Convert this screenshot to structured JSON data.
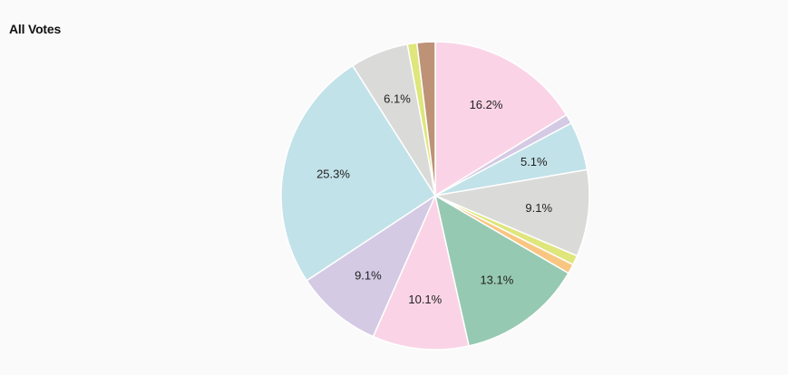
{
  "chart_data": {
    "type": "pie",
    "title": "All Votes",
    "slices": [
      {
        "value": 16.2,
        "color": "#fad4e6",
        "label": "16.2%"
      },
      {
        "value": 1.0,
        "color": "#d4cae4",
        "label": ""
      },
      {
        "value": 5.1,
        "color": "#c2e2e9",
        "label": "5.1%"
      },
      {
        "value": 9.1,
        "color": "#dadad8",
        "label": "9.1%"
      },
      {
        "value": 1.0,
        "color": "#dee67c",
        "label": ""
      },
      {
        "value": 1.0,
        "color": "#f9c682",
        "label": ""
      },
      {
        "value": 13.1,
        "color": "#96c9b1",
        "label": "13.1%"
      },
      {
        "value": 10.1,
        "color": "#fad4e6",
        "label": "10.1%"
      },
      {
        "value": 9.1,
        "color": "#d4cae4",
        "label": "9.1%"
      },
      {
        "value": 25.3,
        "color": "#c2e2e9",
        "label": "25.3%"
      },
      {
        "value": 6.1,
        "color": "#dadad8",
        "label": "6.1%"
      },
      {
        "value": 1.0,
        "color": "#dee67c",
        "label": ""
      },
      {
        "value": 1.9,
        "color": "#be9277",
        "label": ""
      }
    ]
  }
}
